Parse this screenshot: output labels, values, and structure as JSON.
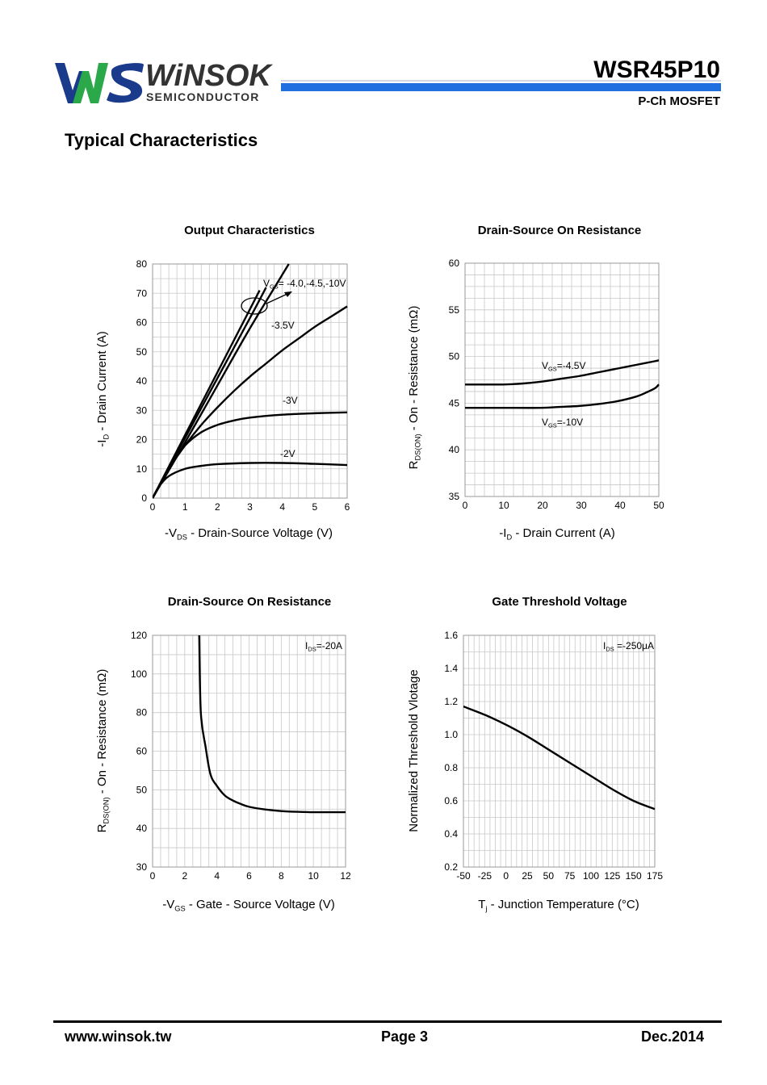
{
  "header": {
    "logo_word": "WiNSOK",
    "logo_sub": "SEMICONDUCTOR",
    "part_number": "WSR45P10",
    "subtitle": "P-Ch MOSFET",
    "colors": {
      "blue": "#1f6fe0",
      "green": "#2aa84a",
      "navy": "#1a3b8c"
    }
  },
  "section_title": "Typical Characteristics",
  "chart_data": [
    {
      "type": "line",
      "title": "Output Characteristics",
      "xlabel_pre": "-V",
      "xlabel_sub": "DS",
      "xlabel_post": " - Drain-Source Voltage (V)",
      "ylabel_pre": "-I",
      "ylabel_sub": "D",
      "ylabel_post": " - Drain Current (A)",
      "xlim": [
        0,
        6
      ],
      "ylim": [
        0,
        80
      ],
      "xticks": [
        0,
        1,
        2,
        3,
        4,
        5,
        6
      ],
      "yticks": [
        0,
        10,
        20,
        30,
        40,
        50,
        60,
        70,
        80
      ],
      "xticklabels": [
        "0",
        "1",
        "2",
        "3",
        "4",
        "5",
        "6"
      ],
      "yticklabels": [
        "0",
        "10",
        "20",
        "30",
        "40",
        "50",
        "60",
        "70",
        "80"
      ],
      "series": [
        {
          "name": "-2V",
          "x": [
            0,
            0.2,
            0.5,
            1,
            1.5,
            2,
            3,
            4,
            5,
            6
          ],
          "y": [
            0,
            4,
            7.5,
            10,
            11,
            11.6,
            12,
            12,
            11.7,
            11.3
          ]
        },
        {
          "name": "-3V",
          "x": [
            0,
            0.3,
            0.6,
            1,
            1.5,
            2,
            2.5,
            3,
            4,
            5,
            6
          ],
          "y": [
            0,
            6,
            12,
            18,
            22.5,
            25,
            26.5,
            27.5,
            28.5,
            29,
            29.3
          ]
        },
        {
          "name": "-3.5V",
          "x": [
            0,
            0.5,
            1,
            1.5,
            2,
            2.5,
            3,
            3.5,
            4,
            4.5,
            5,
            5.5,
            6
          ],
          "y": [
            0,
            10,
            18,
            25,
            31,
            36.5,
            41.5,
            46,
            50.5,
            54.5,
            58.5,
            62,
            65.5
          ]
        },
        {
          "name": "-4.0V",
          "x": [
            0,
            1,
            2,
            3,
            3.3
          ],
          "y": [
            0,
            21.5,
            43,
            64.5,
            71
          ]
        },
        {
          "name": "-4.5V",
          "x": [
            0,
            1,
            2,
            3,
            3.5
          ],
          "y": [
            0,
            20.5,
            41,
            61.5,
            72
          ]
        },
        {
          "name": "-10V",
          "x": [
            0,
            1,
            2,
            3,
            4.2
          ],
          "y": [
            0,
            19,
            38.5,
            58,
            80
          ]
        }
      ],
      "annotations": {
        "vgs_pre": "V",
        "vgs_sub": "GS",
        "vgs_post": "= -4.0,-4.5,-10V",
        "n35": "-3.5V",
        "n3": "-3V",
        "n2": "-2V"
      }
    },
    {
      "type": "line",
      "title": "Drain-Source On Resistance",
      "xlabel_pre": "-I",
      "xlabel_sub": "D",
      "xlabel_post": " - Drain Current (A)",
      "ylabel_pre": "R",
      "ylabel_sub": "DS(ON)",
      "ylabel_post": " - On - Resistance (mΩ)",
      "xlim": [
        0,
        51
      ],
      "ylim": [
        35,
        60
      ],
      "xticks": [
        0,
        10,
        20,
        30,
        40,
        50
      ],
      "yticks": [
        35,
        40,
        45,
        50,
        55,
        60
      ],
      "xticklabels": [
        "0",
        "10",
        "20",
        "30",
        "40",
        "50"
      ],
      "yticklabels": [
        "35",
        "40",
        "45",
        "50",
        "55",
        "60"
      ],
      "series": [
        {
          "name": "VGS=-4.5V",
          "x": [
            0,
            5,
            10,
            15,
            20,
            25,
            30,
            35,
            40,
            45,
            50,
            51
          ],
          "y": [
            47,
            47,
            47,
            47.1,
            47.3,
            47.6,
            47.9,
            48.3,
            48.7,
            49.1,
            49.5,
            49.6
          ]
        },
        {
          "name": "VGS=-10V",
          "x": [
            0,
            10,
            20,
            25,
            30,
            35,
            40,
            45,
            48,
            50,
            51
          ],
          "y": [
            44.5,
            44.5,
            44.5,
            44.6,
            44.7,
            44.9,
            45.2,
            45.7,
            46.2,
            46.6,
            47
          ]
        }
      ],
      "annotations": {
        "a_pre": "V",
        "a_sub": "GS",
        "a_post": "=-4.5V",
        "b_pre": "V",
        "b_sub": "GS",
        "b_post": "=-10V"
      }
    },
    {
      "type": "line",
      "title": "Drain-Source On Resistance",
      "xlabel_pre": "-V",
      "xlabel_sub": "GS",
      "xlabel_post": " - Gate - Source Voltage (V)",
      "ylabel_pre": "R",
      "ylabel_sub": "DS(ON)",
      "ylabel_post": " - On - Resistance (mΩ)",
      "xlim": [
        0,
        12
      ],
      "ylim": [
        30,
        120
      ],
      "xticks": [
        0,
        2,
        4,
        6,
        8,
        10,
        12
      ],
      "yticks": [
        30,
        40,
        50,
        60,
        80,
        100,
        120
      ],
      "xticklabels": [
        "0",
        "2",
        "4",
        "6",
        "8",
        "10",
        "12"
      ],
      "yticklabels": [
        "30",
        "40",
        "50",
        "60",
        "80",
        "100",
        "120"
      ],
      "series": [
        {
          "name": "IDS=-20A",
          "x": [
            2.9,
            3.0,
            3.3,
            3.6,
            4,
            4.5,
            5,
            5.5,
            6,
            7,
            8,
            9,
            10,
            11,
            12
          ],
          "y": [
            120,
            80,
            62,
            54,
            51,
            48.5,
            47.2,
            46.3,
            45.6,
            44.9,
            44.5,
            44.3,
            44.2,
            44.2,
            44.2
          ]
        }
      ],
      "annotations": {
        "a_pre": "I",
        "a_sub": "DS",
        "a_post": "=-20A"
      }
    },
    {
      "type": "line",
      "title": "Gate Threshold Voltage",
      "xlabel_pre": "T",
      "xlabel_sub": "j",
      "xlabel_post": " - Junction Temperature (°C)",
      "ylabel_pre": "Normalized Threshold Vlotage",
      "ylabel_sub": "",
      "ylabel_post": "",
      "xlim": [
        -50,
        175
      ],
      "ylim": [
        0.2,
        1.6
      ],
      "xticks": [
        -50,
        -25,
        0,
        25,
        50,
        75,
        100,
        125,
        150,
        175
      ],
      "yticks": [
        0.2,
        0.4,
        0.6,
        0.8,
        1.0,
        1.2,
        1.4,
        1.6
      ],
      "xticklabels": [
        "-50",
        "-25",
        "0",
        "25",
        "50",
        "75",
        "100",
        "125",
        "150",
        "175"
      ],
      "yticklabels": [
        "0.2",
        "0.4",
        "0.6",
        "0.8",
        "1.0",
        "1.2",
        "1.4",
        "1.6"
      ],
      "series": [
        {
          "name": "IDS=-250uA",
          "x": [
            -50,
            -25,
            0,
            25,
            50,
            75,
            100,
            125,
            150,
            175
          ],
          "y": [
            1.17,
            1.12,
            1.06,
            0.99,
            0.91,
            0.83,
            0.75,
            0.67,
            0.6,
            0.55
          ]
        }
      ],
      "annotations": {
        "a_pre": "I",
        "a_sub": "DS",
        "a_post": " =-250μA"
      }
    }
  ],
  "footer": {
    "website": "www.winsok.tw",
    "page": "Page  3",
    "date": "Dec.2014"
  }
}
